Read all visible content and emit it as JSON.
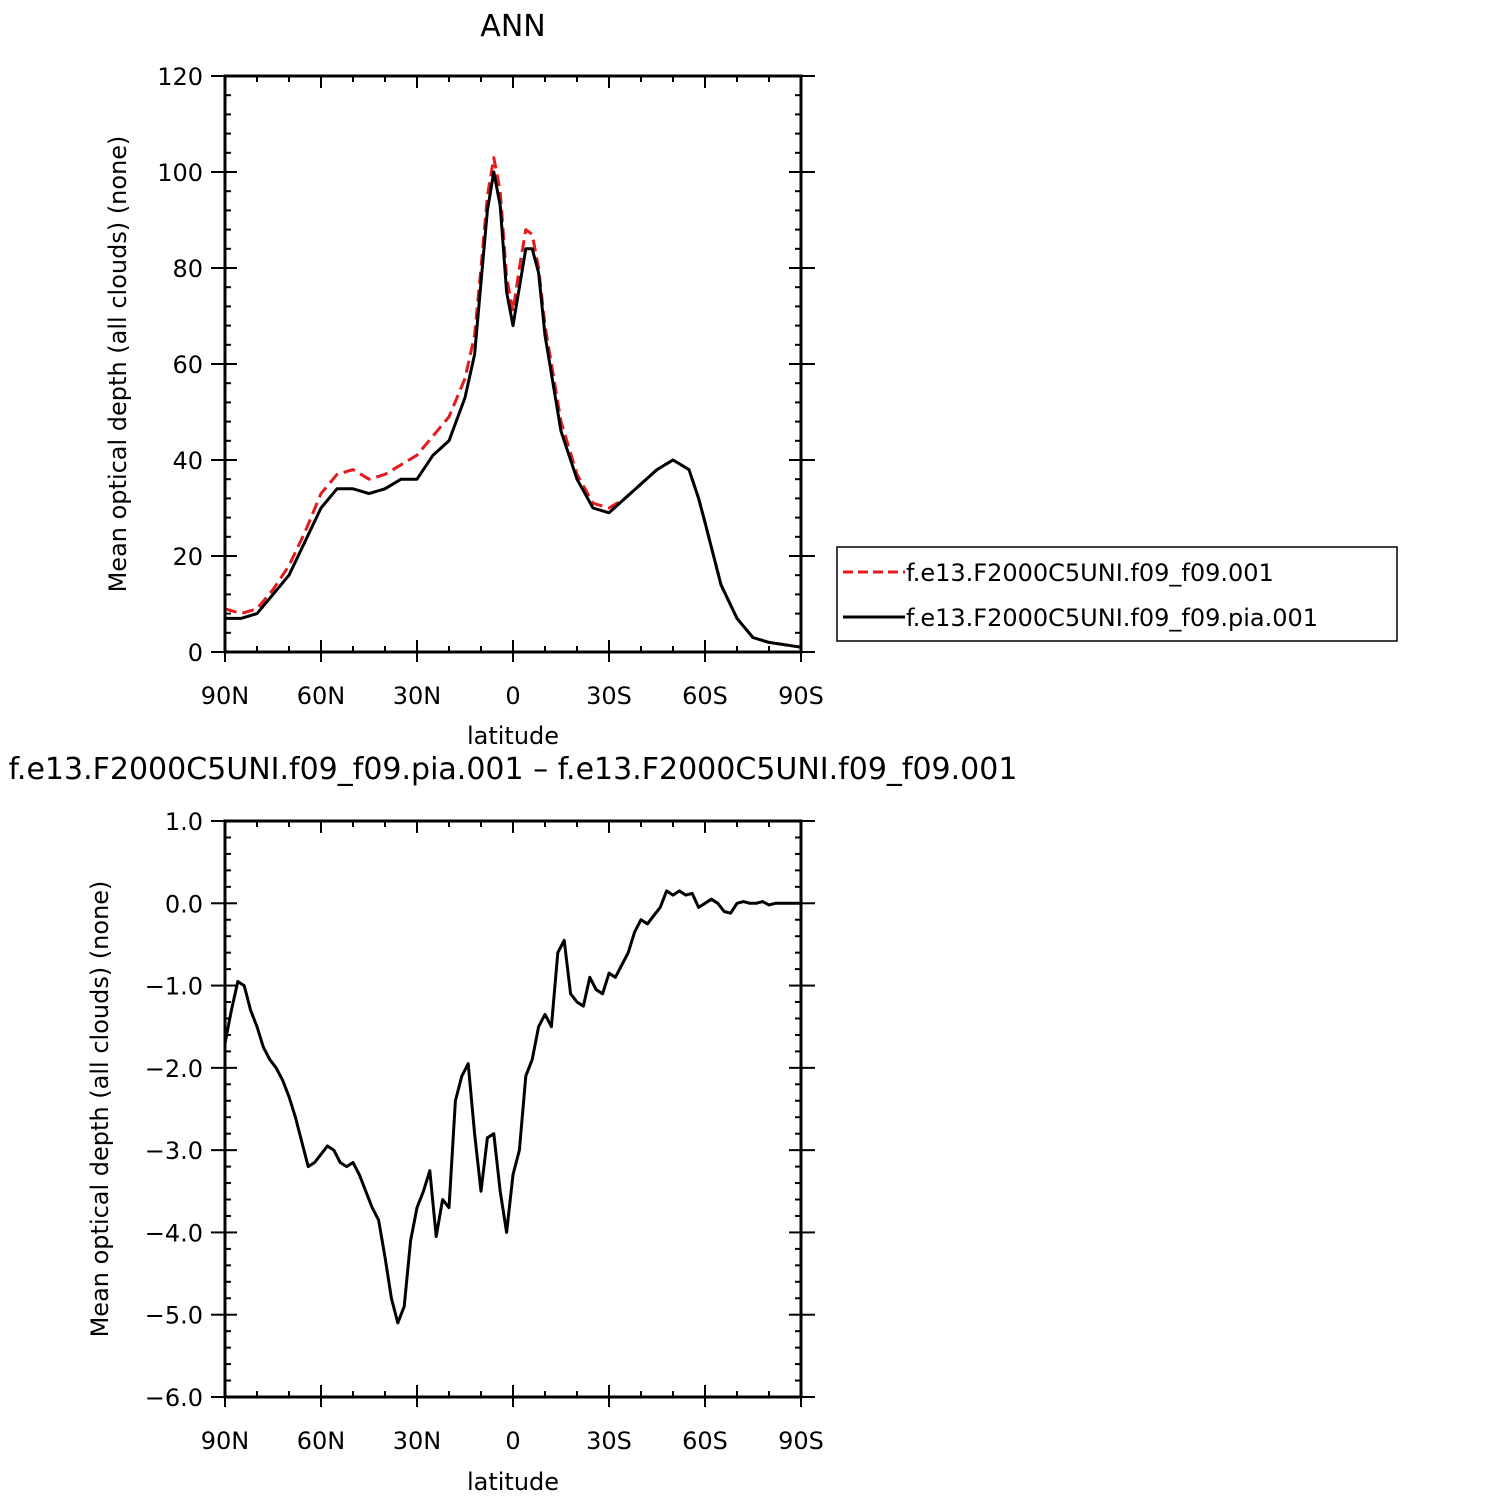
{
  "colors": {
    "background": "#ffffff",
    "axis": "#000000",
    "series_red": "#e41a1c",
    "series_black": "#000000"
  },
  "chart_data": [
    {
      "type": "line",
      "title": "ANN",
      "xlabel": "latitude",
      "ylabel": "Mean optical depth (all clouds) (none)",
      "x_direction": "north-to-south",
      "xlim": [
        90,
        -90
      ],
      "ylim": [
        0,
        120
      ],
      "xticks": [
        {
          "value": 90,
          "label": "90N"
        },
        {
          "value": 60,
          "label": "60N"
        },
        {
          "value": 30,
          "label": "30N"
        },
        {
          "value": 0,
          "label": "0"
        },
        {
          "value": -30,
          "label": "30S"
        },
        {
          "value": -60,
          "label": "60S"
        },
        {
          "value": -90,
          "label": "90S"
        }
      ],
      "yticks": [
        {
          "value": 0,
          "label": "0"
        },
        {
          "value": 20,
          "label": "20"
        },
        {
          "value": 40,
          "label": "40"
        },
        {
          "value": 60,
          "label": "60"
        },
        {
          "value": 80,
          "label": "80"
        },
        {
          "value": 100,
          "label": "100"
        },
        {
          "value": 120,
          "label": "120"
        }
      ],
      "grid": false,
      "legend": {
        "placement": "right",
        "entries": [
          {
            "label": "f.e13.F2000C5UNI.f09_f09.001",
            "color": "#e41a1c",
            "dash": "dashed"
          },
          {
            "label": "f.e13.F2000C5UNI.f09_f09.pia.001",
            "color": "#000000",
            "dash": "solid"
          }
        ]
      },
      "series": [
        {
          "name": "f.e13.F2000C5UNI.f09_f09.001",
          "color": "#e41a1c",
          "dash": "dashed",
          "x": [
            90,
            85,
            80,
            75,
            70,
            65,
            60,
            55,
            50,
            45,
            40,
            35,
            30,
            25,
            20,
            15,
            12,
            10,
            8,
            6,
            4,
            2,
            0,
            -2,
            -4,
            -6,
            -8,
            -10,
            -15,
            -20,
            -25,
            -30,
            -35,
            -40,
            -45,
            -50,
            -55,
            -58,
            -60,
            -65,
            -70,
            -75,
            -80,
            -85,
            -90
          ],
          "y": [
            9,
            8,
            9,
            13,
            18,
            25,
            33,
            37,
            38,
            36,
            37,
            39,
            41,
            45,
            49,
            57,
            66,
            80,
            95,
            103,
            96,
            78,
            71,
            80,
            88,
            87,
            80,
            68,
            48,
            37,
            31,
            30,
            32,
            35,
            38,
            40,
            38,
            32,
            27,
            14,
            7,
            3,
            2,
            1.5,
            1
          ]
        },
        {
          "name": "f.e13.F2000C5UNI.f09_f09.pia.001",
          "color": "#000000",
          "dash": "solid",
          "x": [
            90,
            85,
            80,
            75,
            70,
            65,
            60,
            55,
            50,
            45,
            40,
            35,
            30,
            25,
            20,
            15,
            12,
            10,
            8,
            6,
            4,
            2,
            0,
            -2,
            -4,
            -6,
            -8,
            -10,
            -15,
            -20,
            -25,
            -30,
            -35,
            -40,
            -45,
            -50,
            -55,
            -58,
            -60,
            -65,
            -70,
            -75,
            -80,
            -85,
            -90
          ],
          "y": [
            7,
            7,
            8,
            12,
            16,
            23,
            30,
            34,
            34,
            33,
            34,
            36,
            36,
            41,
            44,
            53,
            62,
            77,
            92,
            100,
            93,
            75,
            68,
            76,
            84,
            84,
            79,
            66,
            46,
            36,
            30,
            29,
            32,
            35,
            38,
            40,
            38,
            32,
            27,
            14,
            7,
            3,
            2,
            1.5,
            1
          ]
        }
      ]
    },
    {
      "type": "line",
      "title": "f.e13.F2000C5UNI.f09_f09.pia.001 – f.e13.F2000C5UNI.f09_f09.001",
      "xlabel": "latitude",
      "ylabel": "Mean optical depth (all clouds) (none)",
      "x_direction": "north-to-south",
      "xlim": [
        90,
        -90
      ],
      "ylim": [
        -6,
        1
      ],
      "xticks": [
        {
          "value": 90,
          "label": "90N"
        },
        {
          "value": 60,
          "label": "60N"
        },
        {
          "value": 30,
          "label": "30N"
        },
        {
          "value": 0,
          "label": "0"
        },
        {
          "value": -30,
          "label": "30S"
        },
        {
          "value": -60,
          "label": "60S"
        },
        {
          "value": -90,
          "label": "90S"
        }
      ],
      "yticks": [
        {
          "value": 1,
          "label": "1.0"
        },
        {
          "value": 0,
          "label": "0.0"
        },
        {
          "value": -1,
          "label": "−1.0"
        },
        {
          "value": -2,
          "label": "−2.0"
        },
        {
          "value": -3,
          "label": "−3.0"
        },
        {
          "value": -4,
          "label": "−4.0"
        },
        {
          "value": -5,
          "label": "−5.0"
        },
        {
          "value": -6,
          "label": "−6.0"
        }
      ],
      "grid": false,
      "series": [
        {
          "color": "#000000",
          "dash": "solid",
          "x": [
            90,
            88,
            86,
            84,
            82,
            80,
            78,
            76,
            74,
            72,
            70,
            68,
            66,
            64,
            62,
            60,
            58,
            56,
            54,
            52,
            50,
            48,
            46,
            44,
            42,
            40,
            38,
            36,
            34,
            32,
            30,
            28,
            26,
            24,
            22,
            20,
            18,
            16,
            14,
            12,
            10,
            8,
            6,
            4,
            2,
            0,
            -2,
            -4,
            -6,
            -8,
            -10,
            -12,
            -14,
            -16,
            -18,
            -20,
            -22,
            -24,
            -26,
            -28,
            -30,
            -32,
            -34,
            -36,
            -38,
            -40,
            -42,
            -44,
            -46,
            -48,
            -50,
            -52,
            -54,
            -56,
            -58,
            -60,
            -62,
            -64,
            -66,
            -68,
            -70,
            -72,
            -74,
            -76,
            -78,
            -80,
            -82,
            -84,
            -86,
            -88,
            -90
          ],
          "y": [
            -1.7,
            -1.3,
            -0.95,
            -1.0,
            -1.3,
            -1.5,
            -1.75,
            -1.9,
            -2.0,
            -2.15,
            -2.35,
            -2.6,
            -2.9,
            -3.2,
            -3.15,
            -3.05,
            -2.95,
            -3.0,
            -3.15,
            -3.2,
            -3.15,
            -3.3,
            -3.5,
            -3.7,
            -3.85,
            -4.3,
            -4.8,
            -5.1,
            -4.9,
            -4.1,
            -3.7,
            -3.5,
            -3.25,
            -4.05,
            -3.6,
            -3.7,
            -2.4,
            -2.1,
            -1.95,
            -2.8,
            -3.5,
            -2.85,
            -2.8,
            -3.5,
            -4.0,
            -3.3,
            -3.0,
            -2.1,
            -1.9,
            -1.5,
            -1.35,
            -1.5,
            -0.6,
            -0.45,
            -1.1,
            -1.2,
            -1.25,
            -0.9,
            -1.05,
            -1.1,
            -0.85,
            -0.9,
            -0.75,
            -0.6,
            -0.35,
            -0.2,
            -0.25,
            -0.15,
            -0.05,
            0.15,
            0.1,
            0.15,
            0.1,
            0.12,
            -0.05,
            0.0,
            0.05,
            0.0,
            -0.1,
            -0.12,
            0.0,
            0.02,
            0.0,
            0.0,
            0.02,
            -0.02,
            0.0,
            0.0,
            0.0,
            0.0,
            0.0
          ]
        }
      ]
    }
  ]
}
